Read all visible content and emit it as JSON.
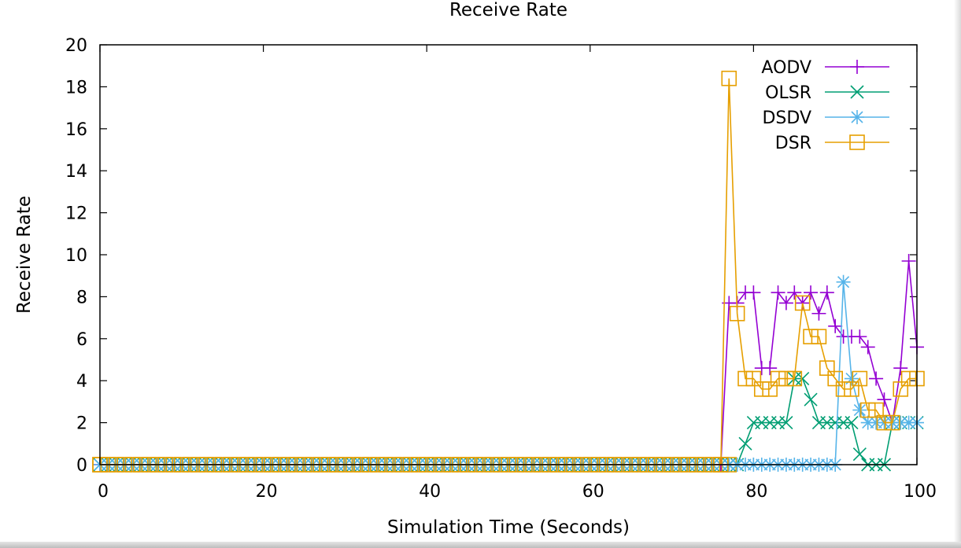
{
  "chart_data": {
    "type": "line",
    "title": "Receive Rate",
    "xlabel": "Simulation Time (Seconds)",
    "ylabel": "Receive Rate",
    "xlim": [
      0,
      100
    ],
    "ylim": [
      0,
      20
    ],
    "xticks": [
      0,
      20,
      40,
      60,
      80,
      100
    ],
    "yticks": [
      0,
      2,
      4,
      6,
      8,
      10,
      12,
      14,
      16,
      18,
      20
    ],
    "grid": false,
    "legend_position": "top-right",
    "series": [
      {
        "name": "AODV",
        "color": "#9400d3",
        "marker": "plus",
        "points": [
          [
            76,
            0
          ],
          [
            77,
            7.7
          ],
          [
            78,
            7.7
          ],
          [
            79,
            8.2
          ],
          [
            80,
            8.2
          ],
          [
            81,
            4.6
          ],
          [
            82,
            4.6
          ],
          [
            83,
            8.2
          ],
          [
            84,
            7.7
          ],
          [
            85,
            8.2
          ],
          [
            86,
            7.7
          ],
          [
            87,
            8.2
          ],
          [
            88,
            7.2
          ],
          [
            89,
            8.2
          ],
          [
            90,
            6.6
          ],
          [
            91,
            6.1
          ],
          [
            92,
            6.1
          ],
          [
            93,
            6.1
          ],
          [
            94,
            5.6
          ],
          [
            95,
            4.1
          ],
          [
            96,
            3.1
          ],
          [
            97,
            2.0
          ],
          [
            98,
            4.6
          ],
          [
            99,
            9.7
          ],
          [
            100,
            5.6
          ]
        ]
      },
      {
        "name": "OLSR",
        "color": "#009e73",
        "marker": "cross",
        "points": [
          [
            77,
            0
          ],
          [
            78,
            0
          ],
          [
            79,
            1.0
          ],
          [
            80,
            2.0
          ],
          [
            81,
            2.0
          ],
          [
            82,
            2.0
          ],
          [
            83,
            2.0
          ],
          [
            84,
            2.0
          ],
          [
            85,
            4.1
          ],
          [
            86,
            4.1
          ],
          [
            87,
            3.1
          ],
          [
            88,
            2.0
          ],
          [
            89,
            2.0
          ],
          [
            90,
            2.0
          ],
          [
            91,
            2.0
          ],
          [
            92,
            2.0
          ],
          [
            93,
            0.5
          ],
          [
            94,
            0
          ],
          [
            95,
            0
          ],
          [
            96,
            0
          ],
          [
            97,
            2.0
          ],
          [
            98,
            2.0
          ],
          [
            99,
            2.0
          ],
          [
            100,
            2.0
          ]
        ]
      },
      {
        "name": "DSDV",
        "color": "#56b4e9",
        "marker": "star",
        "points": [
          [
            77,
            0
          ],
          [
            78,
            0
          ],
          [
            79,
            0
          ],
          [
            80,
            0
          ],
          [
            81,
            0
          ],
          [
            82,
            0
          ],
          [
            83,
            0
          ],
          [
            84,
            0
          ],
          [
            85,
            0
          ],
          [
            86,
            0
          ],
          [
            87,
            0
          ],
          [
            88,
            0
          ],
          [
            89,
            0
          ],
          [
            90,
            0
          ],
          [
            91,
            8.7
          ],
          [
            92,
            4.1
          ],
          [
            93,
            2.6
          ],
          [
            94,
            2.0
          ],
          [
            95,
            2.0
          ],
          [
            96,
            2.0
          ],
          [
            97,
            2.0
          ],
          [
            98,
            2.0
          ],
          [
            99,
            2.0
          ],
          [
            100,
            2.0
          ]
        ]
      },
      {
        "name": "DSR",
        "color": "#e69f00",
        "marker": "square",
        "points": [
          [
            0,
            0
          ],
          [
            76,
            0
          ],
          [
            77,
            18.4
          ],
          [
            78,
            7.2
          ],
          [
            79,
            4.1
          ],
          [
            80,
            4.1
          ],
          [
            81,
            3.6
          ],
          [
            82,
            3.6
          ],
          [
            83,
            4.1
          ],
          [
            84,
            4.1
          ],
          [
            85,
            4.1
          ],
          [
            86,
            7.7
          ],
          [
            87,
            6.1
          ],
          [
            88,
            6.1
          ],
          [
            89,
            4.6
          ],
          [
            90,
            4.1
          ],
          [
            91,
            3.6
          ],
          [
            92,
            3.6
          ],
          [
            93,
            4.1
          ],
          [
            94,
            2.6
          ],
          [
            95,
            2.6
          ],
          [
            96,
            2.0
          ],
          [
            97,
            2.0
          ],
          [
            98,
            3.6
          ],
          [
            99,
            4.1
          ],
          [
            100,
            4.1
          ]
        ]
      }
    ],
    "baseline_markers": {
      "x_start": 0,
      "x_end": 77,
      "step": 1,
      "value": 0
    }
  }
}
